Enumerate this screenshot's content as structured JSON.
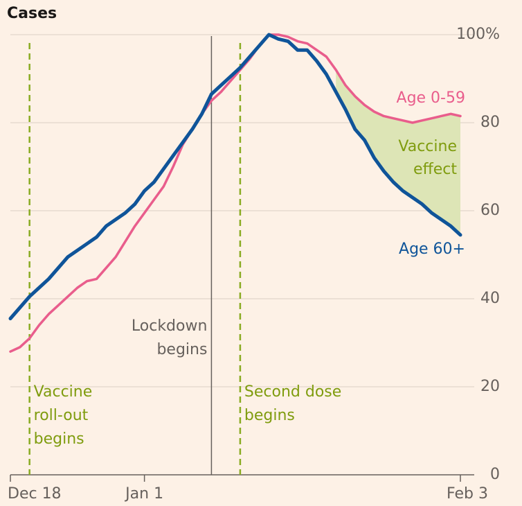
{
  "chart_data": {
    "type": "line",
    "title": "Cases",
    "x": [
      "Dec 18",
      "Dec 19",
      "Dec 20",
      "Dec 21",
      "Dec 22",
      "Dec 23",
      "Dec 24",
      "Dec 25",
      "Dec 26",
      "Dec 27",
      "Dec 28",
      "Dec 29",
      "Dec 30",
      "Dec 31",
      "Jan 1",
      "Jan 2",
      "Jan 3",
      "Jan 4",
      "Jan 5",
      "Jan 6",
      "Jan 7",
      "Jan 8",
      "Jan 9",
      "Jan 10",
      "Jan 11",
      "Jan 12",
      "Jan 13",
      "Jan 14",
      "Jan 15",
      "Jan 16",
      "Jan 17",
      "Jan 18",
      "Jan 19",
      "Jan 20",
      "Jan 21",
      "Jan 22",
      "Jan 23",
      "Jan 24",
      "Jan 25",
      "Jan 26",
      "Jan 27",
      "Jan 28",
      "Jan 29",
      "Jan 30",
      "Jan 31",
      "Feb 1",
      "Feb 2",
      "Feb 3"
    ],
    "series": [
      {
        "name": "Age 0-59",
        "color": "#e95d8c",
        "values": [
          28,
          29,
          31,
          34,
          36.5,
          38.5,
          40.5,
          42.5,
          44,
          44.5,
          47,
          49.5,
          53,
          56.5,
          59.5,
          62.5,
          65.5,
          70,
          75,
          78.5,
          82,
          85,
          87,
          89.5,
          92,
          94.5,
          97.5,
          100,
          100,
          99.5,
          98.5,
          98,
          96.5,
          95,
          92,
          88.5,
          86,
          84,
          82.5,
          81.5,
          81,
          80.5,
          80,
          80.5,
          81,
          81.5,
          82,
          81.5
        ]
      },
      {
        "name": "Age 60+",
        "color": "#0f5499",
        "values": [
          35.5,
          38,
          40.5,
          42.5,
          44.5,
          47,
          49.5,
          51,
          52.5,
          54,
          56.5,
          58,
          59.5,
          61.5,
          64.5,
          66.5,
          69.5,
          72.5,
          75.5,
          78.5,
          82,
          86.5,
          88.5,
          90.5,
          92.5,
          95,
          97.5,
          100,
          99,
          98.5,
          96.5,
          96.5,
          94,
          91,
          87,
          83,
          78.5,
          76,
          72,
          69,
          66.5,
          64.5,
          63,
          61.5,
          59.5,
          58,
          56.5,
          54.5
        ]
      }
    ],
    "ylim": [
      0,
      100
    ],
    "yticks": [
      0,
      20,
      40,
      60,
      80,
      {
        "value": 100,
        "label": "100%"
      }
    ],
    "xticks": [
      "Dec 18",
      "Jan 1",
      "Feb 3"
    ],
    "grid": true,
    "effect_area": {
      "label": [
        "Vaccine",
        "effect"
      ],
      "from": "Jan 21",
      "color": "#dde5b6",
      "text_color": "#7f9c0e"
    },
    "events": [
      {
        "x": "Dec 20",
        "label": [
          "Vaccine",
          "roll-out",
          "begins"
        ],
        "style": "dashed",
        "color": "#8aab22",
        "text_color": "#7f9c0e"
      },
      {
        "x": "Jan 8",
        "label": [
          "Lockdown",
          "begins"
        ],
        "style": "solid",
        "color": "#66605c",
        "text_color": "#66605c"
      },
      {
        "x": "Jan 11",
        "label": [
          "Second dose",
          "begins"
        ],
        "style": "dashed",
        "color": "#8aab22",
        "text_color": "#7f9c0e"
      }
    ]
  }
}
